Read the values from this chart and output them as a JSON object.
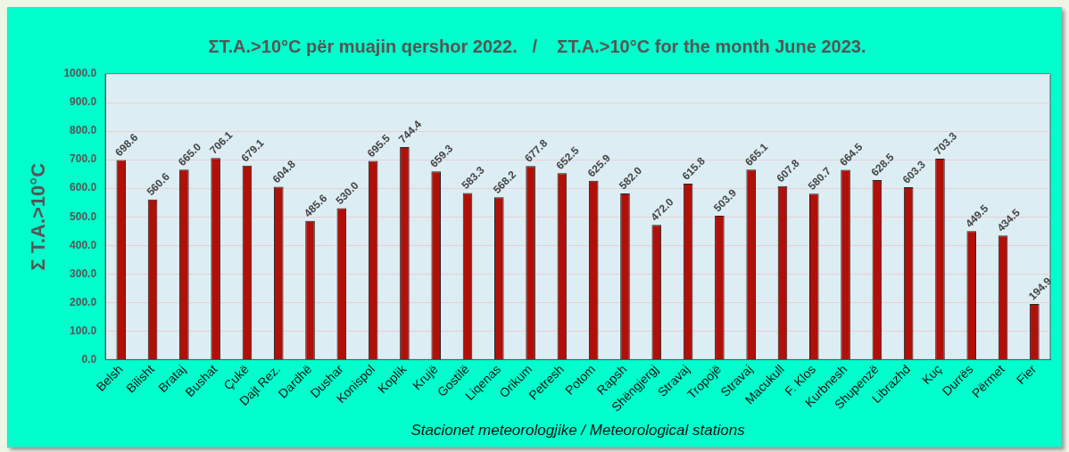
{
  "chart_data": {
    "type": "bar",
    "title": "ΣT.A.>10°C për muajin qershor 2022.   /    ΣT.A.>10°C for the month June 2023.",
    "xlabel": "Stacionet meteorologjike / Meteorological stations",
    "ylabel": "Σ T.A.>10°C",
    "categories": [
      "Belsh",
      "Bilisht",
      "Brataj",
      "Bushat",
      "Çukë",
      "Dajt Rez.",
      "Dardhë",
      "Dushar",
      "Konispol",
      "Koplik",
      "Krujë",
      "Gostilë",
      "Liqenas",
      "Orikum",
      "Petresh",
      "Potom",
      "Rapsh",
      "Shëngjergj",
      "Stravaj",
      "Tropojë",
      "Stravaj",
      "Macukull",
      "F. Klos",
      "Kurbnesh",
      "Shupenzë",
      "Librazhd",
      "Kuç",
      "Durrës",
      "Përmet",
      "Fier"
    ],
    "values": [
      698.6,
      560.6,
      665.0,
      706.1,
      679.1,
      604.8,
      485.6,
      530.0,
      695.5,
      744.4,
      659.3,
      583.3,
      568.2,
      677.8,
      652.5,
      625.9,
      582.0,
      472.0,
      615.8,
      503.9,
      665.1,
      607.8,
      580.7,
      664.5,
      628.5,
      603.3,
      703.3,
      449.5,
      434.5,
      194.9
    ],
    "value_labels": [
      "698.6",
      "560.6",
      "665.0",
      "706.1",
      "679.1",
      "604.8",
      "485.6",
      "530.0",
      "695.5",
      "744.4",
      "659.3",
      "583.3",
      "568.2",
      "677.8",
      "652.5",
      "625.9",
      "582.0",
      "472.0",
      "615.8",
      "503.9",
      "665.1",
      "607.8",
      "580.7",
      "664.5",
      "628.5",
      "603.3",
      "703.3",
      "449.5",
      "434.5",
      "194.9"
    ],
    "color": "#b01008",
    "ylim": [
      0,
      1000
    ],
    "yticks": [
      {
        "value": 0,
        "label": "0.0"
      },
      {
        "value": 100,
        "label": "100.0"
      },
      {
        "value": 200,
        "label": "200.0"
      },
      {
        "value": 300,
        "label": "300.0"
      },
      {
        "value": 400,
        "label": "400.0"
      },
      {
        "value": 500,
        "label": "500.0"
      },
      {
        "value": 600,
        "label": "600.0"
      },
      {
        "value": 700,
        "label": "700.0"
      },
      {
        "value": 800,
        "label": "800.0"
      },
      {
        "value": 900,
        "label": "900.0"
      },
      {
        "value": 1000,
        "label": "1000.0"
      }
    ],
    "grid": "y",
    "legend": false
  }
}
